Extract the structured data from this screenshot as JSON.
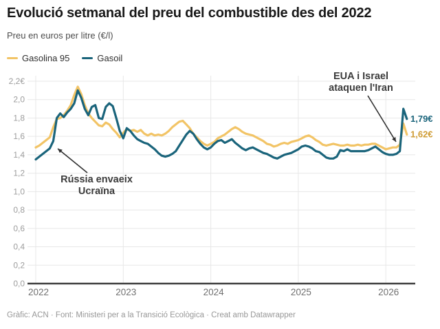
{
  "header": {
    "title": "Evolució setmanal del preu del combustible des del 2022",
    "subtitle": "Preu en euros per litre (€/l)"
  },
  "legend": [
    {
      "label": "Gasolina 95",
      "color": "#f2c466"
    },
    {
      "label": "Gasoil",
      "color": "#1a647b"
    }
  ],
  "annotations": {
    "russia": {
      "line1": "Rússia envaeix",
      "line2": "Ucraïna"
    },
    "iran": {
      "line1": "EUA i Israel",
      "line2": "ataquen l'Iran"
    }
  },
  "footer": {
    "credit": "Gràfic: ACN · Font: Ministeri per a la Transició Ecològica · Creat amb Datawrapper"
  },
  "colors": {
    "gasolina_line": "#f2c466",
    "gasoil_line": "#1a647b",
    "gasolina_end_label": "#cf9c35",
    "gasoil_end_label": "#1a647b",
    "grid": "#e7e7e7",
    "axis": "#3f3f3f",
    "tick_text": "#9c9c9c",
    "year_text": "#6f6f6f",
    "arrow": "#2f2f2f"
  },
  "chart_data": {
    "type": "line",
    "title": "Evolució setmanal del preu del combustible des del 2022",
    "subtitle": "Preu en euros per litre (€/l)",
    "xlabel": "",
    "ylabel": "Preu (€/l)",
    "ylim": [
      0,
      2.2
    ],
    "xlim": [
      2022,
      2026.33
    ],
    "grid": true,
    "legend_position": "top-left",
    "y_ticks": [
      {
        "value": 0.0,
        "label": "0,0"
      },
      {
        "value": 0.2,
        "label": "0,2"
      },
      {
        "value": 0.4,
        "label": "0,4"
      },
      {
        "value": 0.6,
        "label": "0,6"
      },
      {
        "value": 0.8,
        "label": "0,8"
      },
      {
        "value": 1.0,
        "label": "1,0"
      },
      {
        "value": 1.2,
        "label": "1,2"
      },
      {
        "value": 1.4,
        "label": "1,4"
      },
      {
        "value": 1.6,
        "label": "1,6"
      },
      {
        "value": 1.8,
        "label": "1,8"
      },
      {
        "value": 2.0,
        "label": "2,0"
      },
      {
        "value": 2.2,
        "label": "2,2€"
      }
    ],
    "x_ticks": [
      {
        "value": 2022,
        "label": "2022"
      },
      {
        "value": 2023,
        "label": "2023"
      },
      {
        "value": 2024,
        "label": "2024"
      },
      {
        "value": 2025,
        "label": "2025"
      },
      {
        "value": 2026,
        "label": "2026"
      }
    ],
    "x": [
      2022.0,
      2022.04,
      2022.08,
      2022.12,
      2022.16,
      2022.2,
      2022.24,
      2022.28,
      2022.32,
      2022.36,
      2022.4,
      2022.44,
      2022.48,
      2022.52,
      2022.56,
      2022.6,
      2022.64,
      2022.68,
      2022.72,
      2022.76,
      2022.8,
      2022.84,
      2022.88,
      2022.92,
      2022.96,
      2023.0,
      2023.04,
      2023.08,
      2023.12,
      2023.16,
      2023.2,
      2023.24,
      2023.28,
      2023.32,
      2023.36,
      2023.4,
      2023.44,
      2023.48,
      2023.52,
      2023.56,
      2023.6,
      2023.64,
      2023.68,
      2023.72,
      2023.76,
      2023.8,
      2023.84,
      2023.88,
      2023.92,
      2023.96,
      2024.0,
      2024.04,
      2024.08,
      2024.12,
      2024.16,
      2024.2,
      2024.24,
      2024.28,
      2024.32,
      2024.36,
      2024.4,
      2024.44,
      2024.48,
      2024.52,
      2024.56,
      2024.6,
      2024.64,
      2024.68,
      2024.72,
      2024.76,
      2024.8,
      2024.84,
      2024.88,
      2024.92,
      2024.96,
      2025.0,
      2025.04,
      2025.08,
      2025.12,
      2025.16,
      2025.2,
      2025.24,
      2025.28,
      2025.32,
      2025.36,
      2025.4,
      2025.44,
      2025.48,
      2025.52,
      2025.56,
      2025.6,
      2025.64,
      2025.68,
      2025.72,
      2025.76,
      2025.8,
      2025.84,
      2025.88,
      2025.92,
      2025.96,
      2026.0,
      2026.04,
      2026.08,
      2026.12,
      2026.16,
      2026.2,
      2026.24
    ],
    "series": [
      {
        "name": "Gasolina 95",
        "color": "#f2c466",
        "end_label": "1,62€",
        "values": [
          1.48,
          1.5,
          1.53,
          1.56,
          1.59,
          1.7,
          1.79,
          1.8,
          1.83,
          1.88,
          1.94,
          2.05,
          2.14,
          2.06,
          1.94,
          1.85,
          1.8,
          1.76,
          1.72,
          1.71,
          1.75,
          1.73,
          1.68,
          1.64,
          1.59,
          1.64,
          1.68,
          1.66,
          1.67,
          1.65,
          1.67,
          1.63,
          1.61,
          1.63,
          1.61,
          1.62,
          1.61,
          1.63,
          1.66,
          1.7,
          1.73,
          1.76,
          1.77,
          1.73,
          1.69,
          1.63,
          1.59,
          1.55,
          1.52,
          1.5,
          1.52,
          1.54,
          1.58,
          1.6,
          1.62,
          1.65,
          1.68,
          1.7,
          1.68,
          1.65,
          1.63,
          1.62,
          1.61,
          1.59,
          1.57,
          1.55,
          1.52,
          1.51,
          1.49,
          1.5,
          1.52,
          1.53,
          1.52,
          1.54,
          1.55,
          1.56,
          1.58,
          1.6,
          1.61,
          1.59,
          1.56,
          1.54,
          1.51,
          1.5,
          1.51,
          1.52,
          1.51,
          1.5,
          1.5,
          1.51,
          1.5,
          1.5,
          1.51,
          1.5,
          1.51,
          1.51,
          1.52,
          1.52,
          1.5,
          1.48,
          1.46,
          1.47,
          1.48,
          1.48,
          1.51,
          1.74,
          1.62
        ]
      },
      {
        "name": "Gasoil",
        "color": "#1a647b",
        "end_label": "1,79€",
        "values": [
          1.35,
          1.38,
          1.41,
          1.44,
          1.47,
          1.55,
          1.8,
          1.85,
          1.81,
          1.86,
          1.9,
          1.96,
          2.1,
          2.02,
          1.9,
          1.83,
          1.92,
          1.94,
          1.8,
          1.79,
          1.92,
          1.96,
          1.93,
          1.8,
          1.66,
          1.58,
          1.69,
          1.66,
          1.61,
          1.57,
          1.55,
          1.53,
          1.52,
          1.49,
          1.46,
          1.42,
          1.39,
          1.38,
          1.39,
          1.41,
          1.44,
          1.5,
          1.56,
          1.62,
          1.66,
          1.63,
          1.57,
          1.52,
          1.48,
          1.46,
          1.48,
          1.52,
          1.55,
          1.56,
          1.53,
          1.55,
          1.57,
          1.53,
          1.5,
          1.47,
          1.45,
          1.47,
          1.48,
          1.46,
          1.44,
          1.42,
          1.41,
          1.39,
          1.37,
          1.36,
          1.38,
          1.4,
          1.41,
          1.42,
          1.44,
          1.46,
          1.49,
          1.5,
          1.49,
          1.47,
          1.44,
          1.43,
          1.4,
          1.37,
          1.36,
          1.36,
          1.38,
          1.45,
          1.44,
          1.46,
          1.44,
          1.44,
          1.44,
          1.44,
          1.44,
          1.45,
          1.47,
          1.49,
          1.46,
          1.43,
          1.41,
          1.4,
          1.4,
          1.41,
          1.44,
          1.9,
          1.79
        ]
      }
    ]
  }
}
